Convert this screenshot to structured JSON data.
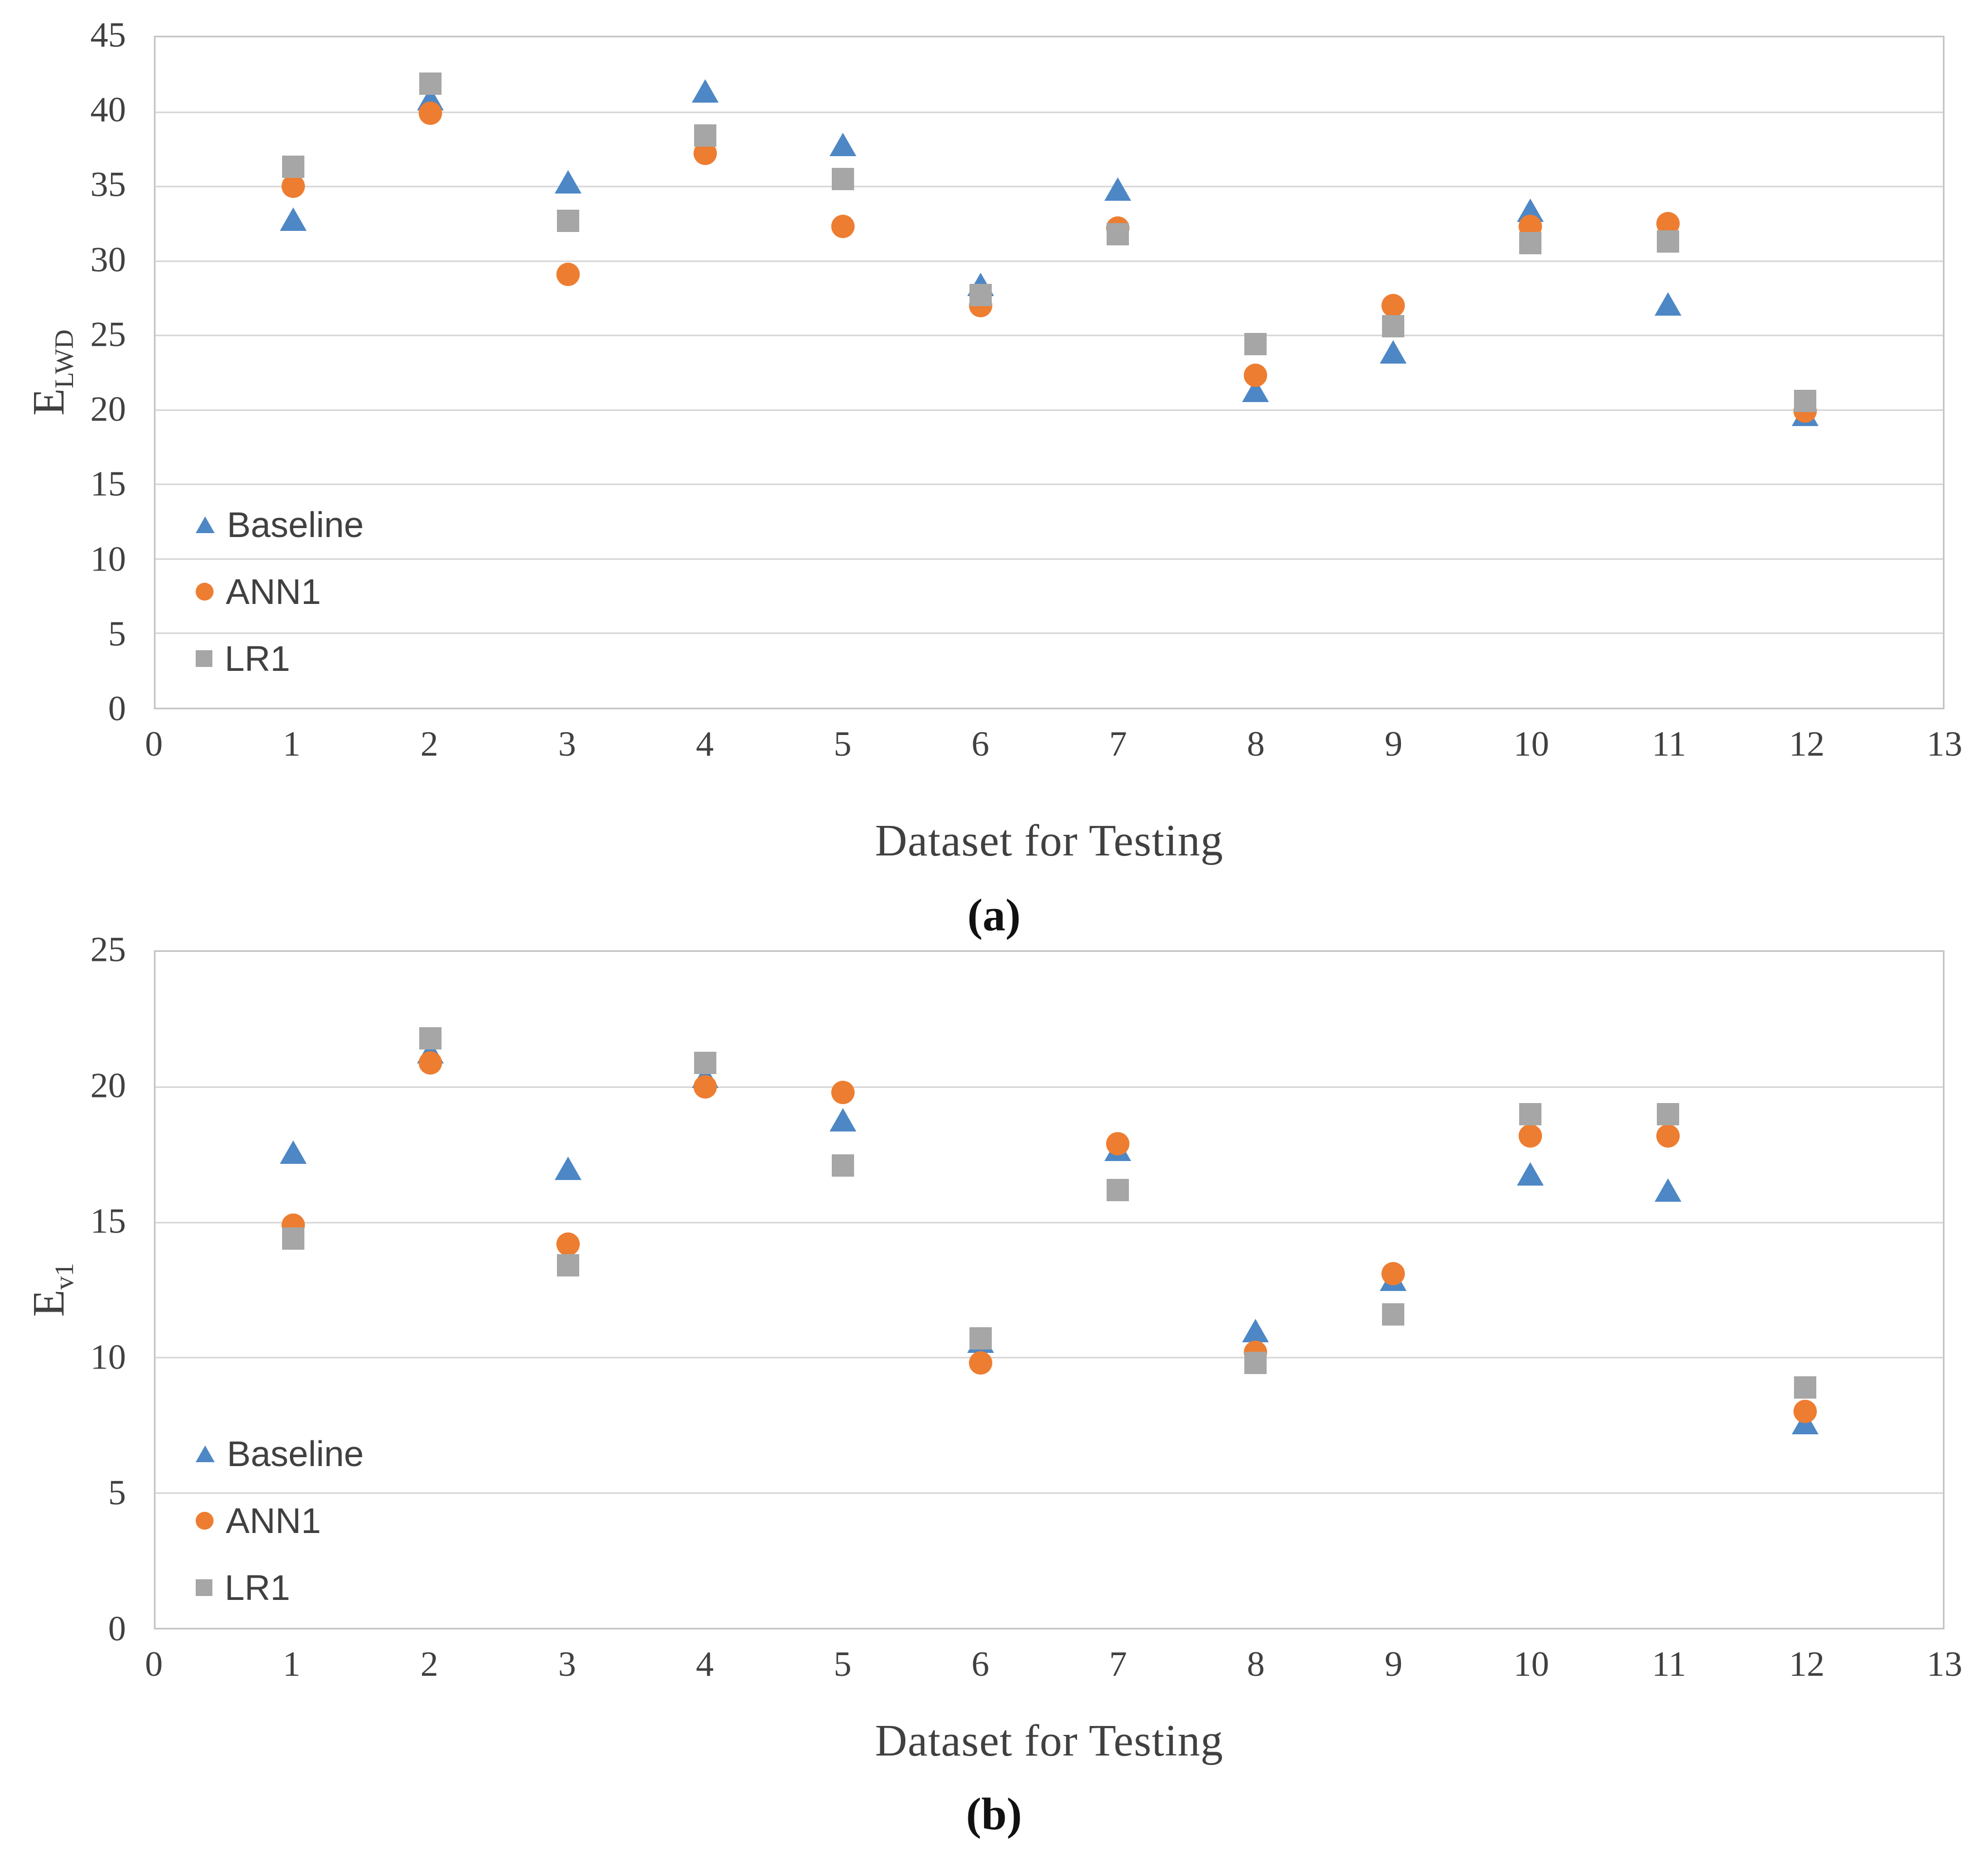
{
  "figure": {
    "background": "#ffffff",
    "text_color": "#404040",
    "gridline_color": "#d9d9d9",
    "axis_border_color": "#c6c6c6"
  },
  "colors": {
    "baseline_blue": "#4D87C5",
    "ann1_orange": "#ED7D31",
    "lr1_gray": "#A6A6A6"
  },
  "chart_data": [
    {
      "id": "a",
      "type": "scatter",
      "caption": "(a)",
      "xlabel": "Dataset for Testing",
      "ylabel_base": "E",
      "ylabel_sub": "LWD",
      "ylim": [
        0,
        45
      ],
      "xlim": [
        0,
        13
      ],
      "yticks": [
        0,
        5,
        10,
        15,
        20,
        25,
        30,
        35,
        40,
        45
      ],
      "xticks": [
        0,
        1,
        2,
        3,
        4,
        5,
        6,
        7,
        8,
        9,
        10,
        11,
        12,
        13
      ],
      "grid": "horizontal-only",
      "legend_position": "inside-lower-left",
      "x": [
        1,
        2,
        3,
        4,
        5,
        6,
        7,
        8,
        9,
        10,
        11,
        12
      ],
      "series": [
        {
          "name": "Baseline",
          "marker": "triangle",
          "color_key": "baseline_blue",
          "values": [
            32.8,
            40.9,
            35.3,
            41.4,
            37.8,
            28.4,
            34.8,
            21.3,
            23.9,
            33.4,
            27.1,
            19.7
          ]
        },
        {
          "name": "ANN1",
          "marker": "circle",
          "color_key": "ann1_orange",
          "values": [
            35.0,
            39.9,
            29.1,
            37.2,
            32.3,
            27.0,
            32.2,
            22.3,
            27.0,
            32.3,
            32.5,
            19.9
          ]
        },
        {
          "name": "LR1",
          "marker": "square",
          "color_key": "lr1_gray",
          "values": [
            36.3,
            41.9,
            32.7,
            38.4,
            35.5,
            27.7,
            31.8,
            24.4,
            25.6,
            31.2,
            31.3,
            20.6
          ]
        }
      ]
    },
    {
      "id": "b",
      "type": "scatter",
      "caption": "(b)",
      "xlabel": "Dataset for Testing",
      "ylabel_base": "E",
      "ylabel_sub": "v1",
      "ylim": [
        0,
        25
      ],
      "xlim": [
        0,
        13
      ],
      "yticks": [
        0,
        5,
        10,
        15,
        20,
        25
      ],
      "xticks": [
        0,
        1,
        2,
        3,
        4,
        5,
        6,
        7,
        8,
        9,
        10,
        11,
        12,
        13
      ],
      "grid": "horizontal-only",
      "legend_position": "inside-lower-left",
      "x": [
        1,
        2,
        3,
        4,
        5,
        6,
        7,
        8,
        9,
        10,
        11,
        12
      ],
      "series": [
        {
          "name": "Baseline",
          "marker": "triangle",
          "color_key": "baseline_blue",
          "values": [
            17.6,
            21.3,
            17.0,
            20.4,
            18.8,
            10.6,
            17.7,
            11.0,
            12.9,
            16.8,
            16.2,
            7.6
          ]
        },
        {
          "name": "ANN1",
          "marker": "circle",
          "color_key": "ann1_orange",
          "values": [
            14.9,
            20.9,
            14.2,
            20.0,
            19.8,
            9.8,
            17.9,
            10.2,
            13.1,
            18.2,
            18.2,
            8.0
          ]
        },
        {
          "name": "LR1",
          "marker": "square",
          "color_key": "lr1_gray",
          "values": [
            14.4,
            21.8,
            13.4,
            20.9,
            17.1,
            10.7,
            16.2,
            9.8,
            11.6,
            19.0,
            19.0,
            8.9
          ]
        }
      ]
    }
  ]
}
